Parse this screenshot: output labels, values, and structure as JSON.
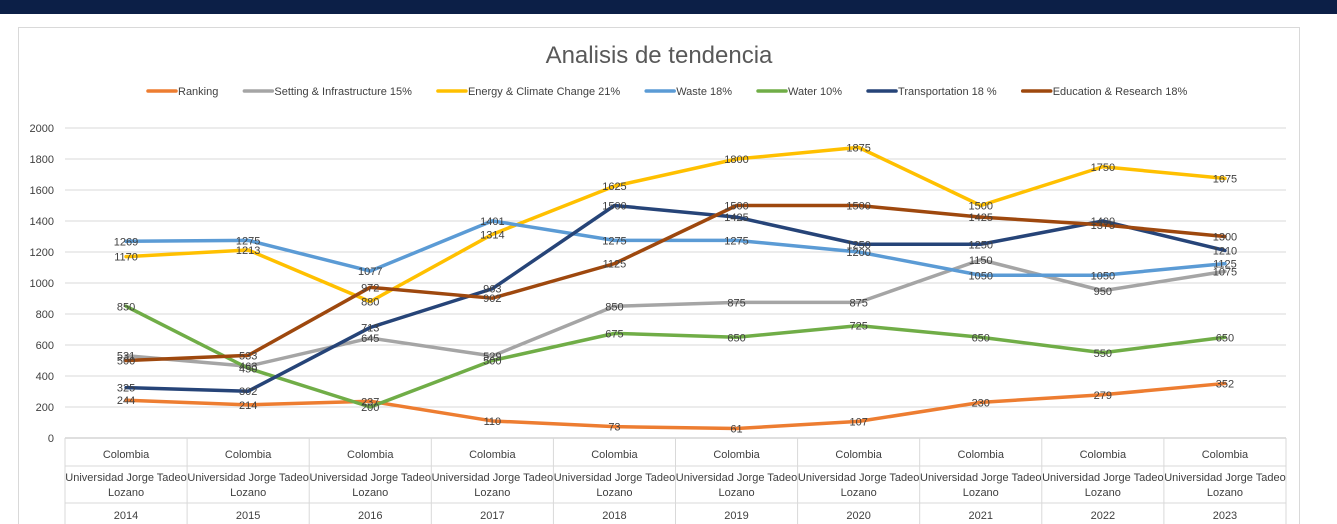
{
  "chart_data": {
    "type": "line",
    "title": "Analisis de tendencia",
    "xlabel": "",
    "ylabel": "",
    "ylim": [
      0,
      2000
    ],
    "yticks": [
      0,
      200,
      400,
      600,
      800,
      1000,
      1200,
      1400,
      1600,
      1800,
      2000
    ],
    "grid": true,
    "legend_position": "top",
    "category_levels": {
      "country": "Colombia",
      "university": "Universidad Jorge Tadeo Lozano",
      "university_lines": [
        "Universidad Jorge Tadeo",
        "Lozano"
      ]
    },
    "categories": [
      "2014",
      "2015",
      "2016",
      "2017",
      "2018",
      "2019",
      "2020",
      "2021",
      "2022",
      "2023"
    ],
    "series": [
      {
        "name": "Ranking",
        "color": "#ed7d31",
        "values": [
          244,
          214,
          237,
          110,
          73,
          61,
          107,
          230,
          279,
          352
        ]
      },
      {
        "name": "Setting & Infrastructure 15%",
        "color": "#a5a5a5",
        "values": [
          531,
          463,
          645,
          529,
          850,
          875,
          875,
          1150,
          950,
          1075
        ]
      },
      {
        "name": "Energy & Climate Change  21%",
        "color": "#ffc000",
        "values": [
          1170,
          1213,
          880,
          1314,
          1625,
          1800,
          1875,
          1500,
          1750,
          1675
        ]
      },
      {
        "name": "Waste  18%",
        "color": "#5b9bd5",
        "values": [
          1269,
          1275,
          1077,
          1401,
          1275,
          1275,
          1200,
          1050,
          1050,
          1125
        ]
      },
      {
        "name": "Water 10%",
        "color": "#70ad47",
        "values": [
          850,
          450,
          200,
          500,
          675,
          650,
          725,
          650,
          550,
          650
        ]
      },
      {
        "name": "Transportation  18 %",
        "color": "#264478",
        "values": [
          325,
          302,
          713,
          963,
          1500,
          1425,
          1250,
          1250,
          1400,
          1210
        ]
      },
      {
        "name": "Education & Research 18%",
        "color": "#9e480e",
        "values": [
          500,
          533,
          972,
          902,
          1125,
          1500,
          1500,
          1425,
          1375,
          1300
        ]
      }
    ]
  }
}
